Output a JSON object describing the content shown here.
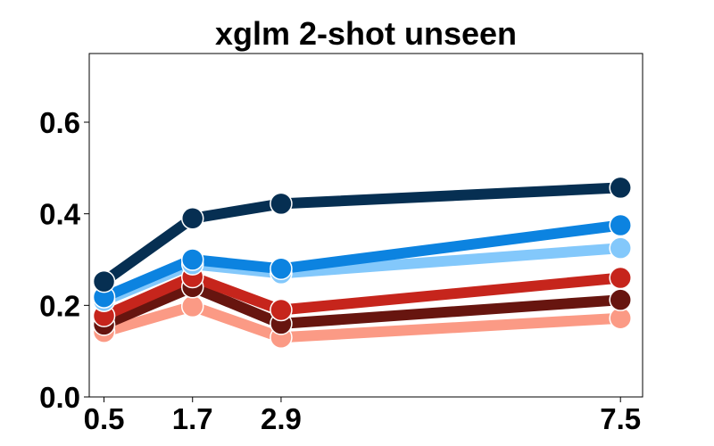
{
  "chart_data": {
    "type": "line",
    "title": "xglm 2-shot unseen",
    "xlabel": "",
    "ylabel": "",
    "x": [
      0.5,
      1.7,
      2.9,
      7.5
    ],
    "x_tick_labels": [
      "0.5",
      "1.7",
      "2.9",
      "7.5"
    ],
    "xlim": [
      0.3,
      7.8
    ],
    "ylim": [
      0.0,
      0.75
    ],
    "y_ticks": [
      0.0,
      0.2,
      0.4,
      0.6
    ],
    "y_tick_labels": [
      "0.0",
      "0.2",
      "0.4",
      "0.6"
    ],
    "grid": false,
    "legend": "none",
    "series": [
      {
        "color": "#fb9a85",
        "values": [
          0.142,
          0.198,
          0.13,
          0.172
        ]
      },
      {
        "color": "#67150f",
        "values": [
          0.158,
          0.24,
          0.16,
          0.212
        ]
      },
      {
        "color": "#c6251c",
        "values": [
          0.177,
          0.262,
          0.19,
          0.26
        ]
      },
      {
        "color": "#83c8fb",
        "values": [
          0.21,
          0.29,
          0.27,
          0.325
        ]
      },
      {
        "color": "#0c83e0",
        "values": [
          0.218,
          0.3,
          0.28,
          0.375
        ]
      },
      {
        "color": "#062f52",
        "values": [
          0.252,
          0.39,
          0.422,
          0.457
        ]
      }
    ]
  }
}
